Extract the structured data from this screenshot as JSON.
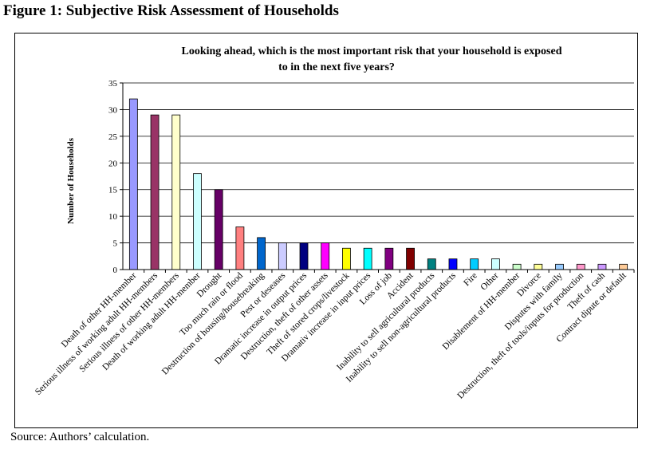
{
  "figure_title": "Figure 1: Subjective Risk Assessment of Households",
  "source_note": "Source: Authors’ calculation.",
  "chart_data": {
    "type": "bar",
    "title_lines": [
      "Looking ahead, which is the most important risk that your household is exposed",
      "to in the next five years?"
    ],
    "xlabel": "",
    "ylabel": "Number of Households",
    "ylim": [
      0,
      35
    ],
    "yticks": [
      0,
      5,
      10,
      15,
      20,
      25,
      30,
      35
    ],
    "grid": true,
    "legend": "none",
    "categories": [
      "Death of other HH-member",
      "Serious illness of working adult HH-members",
      "Serious illness of other HH-members",
      "Death of working adult HH-member",
      "Drought",
      "Too much rain or flood",
      "Destruction of housing/housebreaking",
      "Pest or deseases",
      "Dramatic increase in output prices",
      "Destruction, theft of other assets",
      "Theft of stored crops/livestock",
      "Dramativ increase in input prices",
      "Loss of job",
      "Accident",
      "Inability to sell agricultural products",
      "Inability to sell non-agricultural products",
      "Fire",
      "Other",
      "Disablement of HH-member",
      "Divorce",
      "Disputes with family",
      "Destruction, theft of tools/inputs for production",
      "Theft of cash",
      "Contract dipute or default"
    ],
    "values": [
      32,
      29,
      29,
      18,
      15,
      8,
      6,
      5,
      5,
      5,
      4,
      4,
      4,
      4,
      2,
      2,
      2,
      2,
      1,
      1,
      1,
      1,
      1,
      1
    ],
    "colors": [
      "#9999ff",
      "#993366",
      "#ffffcc",
      "#ccffff",
      "#660066",
      "#ff8080",
      "#0066cc",
      "#ccccff",
      "#000080",
      "#ff00ff",
      "#ffff00",
      "#00ffff",
      "#800080",
      "#800000",
      "#008080",
      "#0000ff",
      "#00ccff",
      "#ccffff",
      "#ccffcc",
      "#ffff99",
      "#99ccff",
      "#ff99cc",
      "#cc99ff",
      "#ffcc99"
    ]
  }
}
